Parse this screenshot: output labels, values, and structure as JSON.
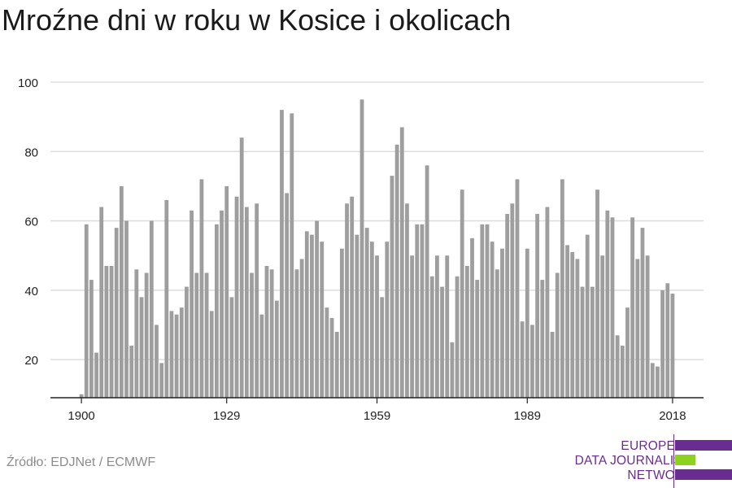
{
  "title": "Mroźne dni w roku w Kosice i okolicach",
  "source": "Źródło: EDJNet / ECMWF",
  "logo": {
    "lines": [
      "EUROPEAN",
      "DATA JOURNALISM",
      "NETWORK"
    ],
    "colors": {
      "purple": "#6b2c91",
      "green": "#8fd11f"
    }
  },
  "colors": {
    "bar": "#9e9e9e",
    "grid": "#dddddd",
    "axis": "#222222"
  },
  "chart_data": {
    "type": "bar",
    "title": "Mroźne dni w roku w Kosice i okolicach",
    "xlabel": "",
    "ylabel": "",
    "grid": true,
    "ylim": [
      9,
      100
    ],
    "yticks": [
      20,
      40,
      60,
      80,
      100
    ],
    "xticks": [
      1900,
      1929,
      1959,
      1989,
      2018
    ],
    "categories": [
      1900,
      1901,
      1902,
      1903,
      1904,
      1905,
      1906,
      1907,
      1908,
      1909,
      1910,
      1911,
      1912,
      1913,
      1914,
      1915,
      1916,
      1917,
      1918,
      1919,
      1920,
      1921,
      1922,
      1923,
      1924,
      1925,
      1926,
      1927,
      1928,
      1929,
      1930,
      1931,
      1932,
      1933,
      1934,
      1935,
      1936,
      1937,
      1938,
      1939,
      1940,
      1941,
      1942,
      1943,
      1944,
      1945,
      1946,
      1947,
      1948,
      1949,
      1950,
      1951,
      1952,
      1953,
      1954,
      1955,
      1956,
      1957,
      1958,
      1959,
      1960,
      1961,
      1962,
      1963,
      1964,
      1965,
      1966,
      1967,
      1968,
      1969,
      1970,
      1971,
      1972,
      1973,
      1974,
      1975,
      1976,
      1977,
      1978,
      1979,
      1980,
      1981,
      1982,
      1983,
      1984,
      1985,
      1986,
      1987,
      1988,
      1989,
      1990,
      1991,
      1992,
      1993,
      1994,
      1995,
      1996,
      1997,
      1998,
      1999,
      2000,
      2001,
      2002,
      2003,
      2004,
      2005,
      2006,
      2007,
      2008,
      2009,
      2010,
      2011,
      2012,
      2013,
      2014,
      2015,
      2016,
      2017,
      2018
    ],
    "values": [
      10,
      59,
      43,
      22,
      64,
      47,
      47,
      58,
      70,
      60,
      24,
      46,
      38,
      45,
      60,
      30,
      19,
      66,
      34,
      33,
      35,
      41,
      63,
      45,
      72,
      45,
      34,
      59,
      63,
      70,
      38,
      67,
      84,
      64,
      45,
      65,
      33,
      47,
      46,
      37,
      92,
      68,
      91,
      46,
      49,
      57,
      56,
      60,
      54,
      35,
      32,
      28,
      52,
      65,
      67,
      56,
      95,
      58,
      54,
      50,
      38,
      54,
      73,
      82,
      87,
      65,
      50,
      59,
      59,
      76,
      44,
      50,
      41,
      50,
      25,
      44,
      69,
      47,
      55,
      43,
      59,
      59,
      54,
      46,
      52,
      62,
      65,
      72,
      31,
      52,
      30,
      62,
      43,
      64,
      28,
      45,
      72,
      53,
      51,
      49,
      41,
      56,
      41,
      69,
      50,
      63,
      61,
      27,
      24,
      35,
      61,
      49,
      58,
      50,
      19,
      18,
      40,
      42,
      39
    ]
  }
}
